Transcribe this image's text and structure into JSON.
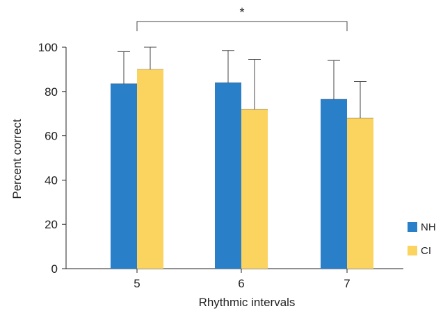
{
  "chart_data": {
    "type": "bar",
    "title": "",
    "xlabel": "Rhythmic intervals",
    "ylabel": "Percent correct",
    "categories": [
      "5",
      "6",
      "7"
    ],
    "ylim": [
      0,
      100
    ],
    "yticks": [
      0,
      20,
      40,
      60,
      80,
      100
    ],
    "grid": false,
    "legend_position": "bottom-right",
    "series": [
      {
        "name": "NH",
        "color": "#2a7fc9",
        "values": [
          83.5,
          84,
          76.5
        ],
        "error_upper": [
          98,
          98.5,
          94
        ]
      },
      {
        "name": "CI",
        "color": "#fbd35f",
        "values": [
          90,
          72,
          68
        ],
        "error_upper": [
          100,
          94.5,
          84.5
        ]
      }
    ],
    "significance": {
      "label": "*",
      "between_categories": [
        "5",
        "7"
      ]
    }
  }
}
